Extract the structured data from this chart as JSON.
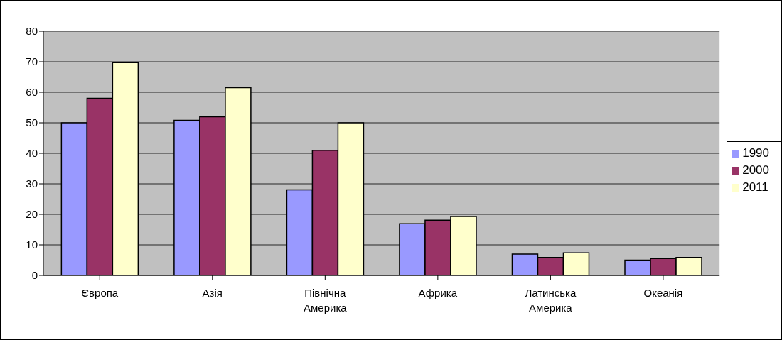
{
  "chart_data": {
    "type": "bar",
    "categories": [
      "Європа",
      "Азія",
      "Північна Америка",
      "Африка",
      "Латинська Америка",
      "Океанія"
    ],
    "series": [
      {
        "name": "1990",
        "color": "#9999ff",
        "values": [
          50,
          50.8,
          28,
          16.9,
          7,
          5
        ]
      },
      {
        "name": "2000",
        "color": "#993366",
        "values": [
          58,
          52,
          41,
          18.1,
          5.9,
          5.5
        ]
      },
      {
        "name": "2011",
        "color": "#ffffcc",
        "values": [
          69.7,
          61.5,
          50,
          19.3,
          7.4,
          5.9
        ]
      }
    ],
    "ylim": [
      0,
      80
    ],
    "yticks": [
      0,
      10,
      20,
      30,
      40,
      50,
      60,
      70,
      80
    ],
    "grid": "y",
    "legend": "right"
  }
}
